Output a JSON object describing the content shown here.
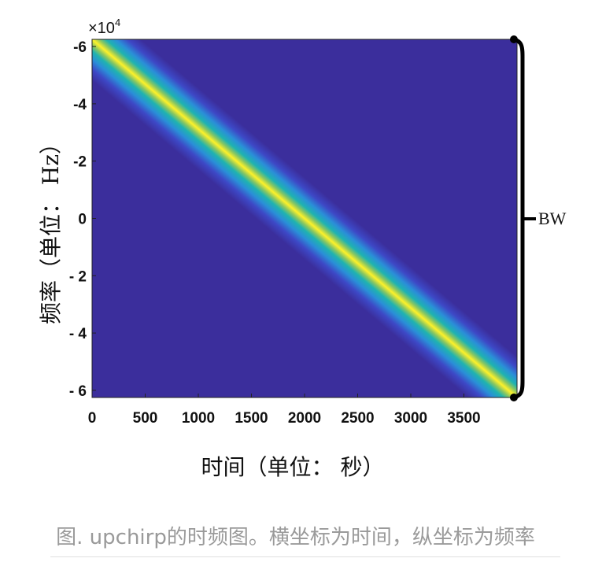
{
  "chart_data": {
    "type": "heatmap",
    "xlabel": "时间（单位： 秒）",
    "ylabel": "频率（单位： Hz）",
    "xlim": [
      0,
      4000
    ],
    "ylim": [
      -6.25,
      6.25
    ],
    "y_multiplier_label": "×10",
    "y_multiplier_exponent": "4",
    "x_ticks": [
      0,
      500,
      1000,
      1500,
      2000,
      2500,
      3000,
      3500
    ],
    "x_tick_labels": [
      "0",
      "500",
      "1000",
      "1500",
      "2000",
      "2500",
      "3000",
      "3500"
    ],
    "y_ticks": [
      -6,
      -4,
      -2,
      0,
      2,
      4,
      6
    ],
    "y_tick_labels": [
      "-6",
      "-4",
      "-2",
      "0",
      "- 2",
      "- 4",
      "- 6"
    ],
    "ridge": {
      "start": {
        "x": 0,
        "y": -6.25
      },
      "end": {
        "x": 4000,
        "y": 6.25
      }
    },
    "colors": {
      "background": "#3b2e9c",
      "peak": "#fdf12a",
      "mid": "#f5b73c",
      "edge": "#1fb3b0"
    },
    "annotation": {
      "label": "BW",
      "description_spans": "full frequency range"
    }
  },
  "caption": "图. upchirp的时频图。横坐标为时间，纵坐标为频率"
}
